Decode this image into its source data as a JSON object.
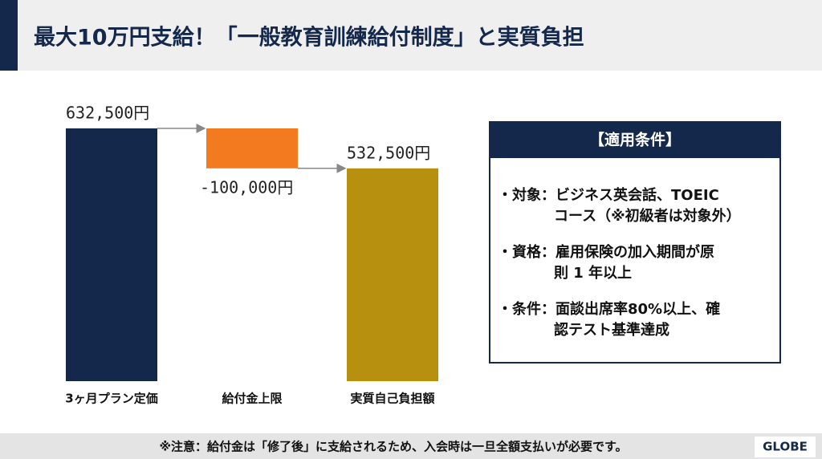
{
  "header": {
    "title": "最大10万円支給！「一般教育訓練給付制度」と実質負担"
  },
  "chart_data": {
    "type": "waterfall",
    "categories": [
      "3ヶ月プラン定価",
      "給付金上限",
      "実質自己負担額"
    ],
    "values": [
      632500,
      -100000,
      532500
    ],
    "value_labels": [
      "632,500円",
      "-100,000円",
      "532,500円"
    ],
    "measure": [
      "absolute",
      "relative",
      "total"
    ],
    "colors": [
      "#14284b",
      "#f47a20",
      "#b8900f"
    ]
  },
  "conditions": {
    "title": "【適用条件】",
    "items": [
      [
        "・対象：ビジネス英会話、TOEIC",
        "コース（※初級者は対象外）"
      ],
      [
        "・資格：雇用保険の加入期間が原",
        "則 1 年以上"
      ],
      [
        "・条件：面談出席率80%以上、確",
        "認テスト基準達成"
      ]
    ]
  },
  "footer": {
    "note": "※注意：給付金は「修了後」に支給されるため、入会時は一旦全額支払いが必要です。",
    "logo": "GLOBE"
  }
}
